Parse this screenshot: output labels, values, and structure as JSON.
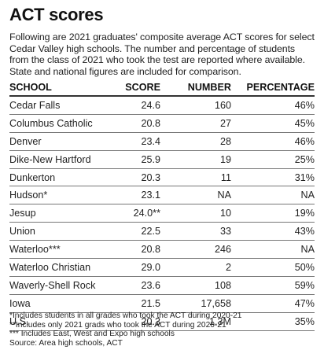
{
  "title": "ACT scores",
  "intro": "Following are 2021 graduates' composite average ACT scores for select Cedar Valley high schools. The number and percentage of students from the class of 2021 who took the test are reported where available. State and national figures are included for comparison.",
  "columns": {
    "school": "SCHOOL",
    "score": "SCORE",
    "number": "NUMBER",
    "percentage": "PERCENTAGE"
  },
  "rows": [
    {
      "school": "Cedar Falls",
      "score": "24.6",
      "number": "160",
      "percentage": "46%"
    },
    {
      "school": "Columbus Catholic",
      "score": "20.8",
      "number": "27",
      "percentage": "45%"
    },
    {
      "school": "Denver",
      "score": "23.4",
      "number": "28",
      "percentage": "46%"
    },
    {
      "school": "Dike-New Hartford",
      "score": "25.9",
      "number": "19",
      "percentage": "25%"
    },
    {
      "school": "Dunkerton",
      "score": "20.3",
      "number": "11",
      "percentage": "31%"
    },
    {
      "school": "Hudson*",
      "score": "23.1",
      "number": "NA",
      "percentage": "NA"
    },
    {
      "school": "Jesup",
      "score": "24.0**",
      "number": "10",
      "percentage": "19%"
    },
    {
      "school": "Union",
      "score": "22.5",
      "number": "33",
      "percentage": "43%"
    },
    {
      "school": "Waterloo***",
      "score": "20.8",
      "number": "246",
      "percentage": "NA"
    },
    {
      "school": "Waterloo Christian",
      "score": "29.0",
      "number": "2",
      "percentage": "50%"
    },
    {
      "school": "Waverly-Shell Rock",
      "score": "23.6",
      "number": "108",
      "percentage": "59%"
    },
    {
      "school": "Iowa",
      "score": "21.5",
      "number": "17,658",
      "percentage": "47%"
    },
    {
      "school": "U.S.",
      "score": "20.3",
      "number": "1.3M",
      "percentage": "35%"
    }
  ],
  "notes": [
    "*Includes students in all grades who took the ACT during 2020-21",
    "**Includes only 2021 grads who took the ACT during 2020-21",
    "*** Includes East, West and Expo high schools",
    "Source: Area high schools, ACT"
  ]
}
